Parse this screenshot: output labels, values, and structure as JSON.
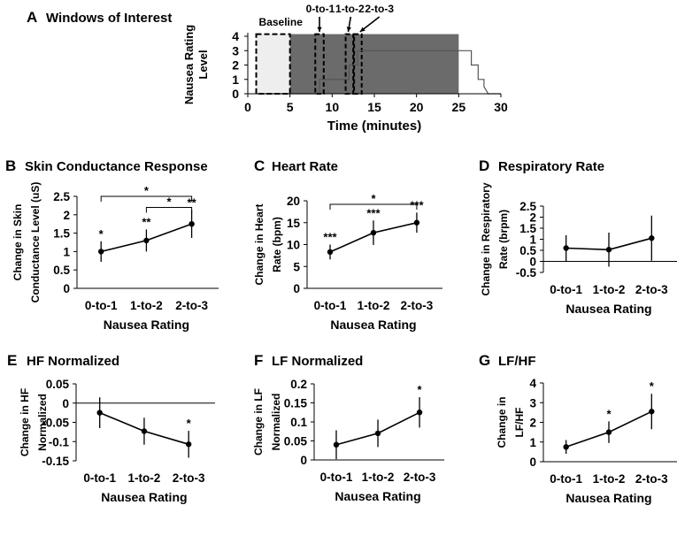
{
  "panelA": {
    "letter": "A",
    "title": "Windows of Interest",
    "ylabel_line1": "Nausea Rating",
    "ylabel_line2": "Level",
    "xlabel": "Time (minutes)",
    "x_ticks": [
      0,
      5,
      10,
      15,
      20,
      25,
      30
    ],
    "y_ticks": [
      0,
      1,
      2,
      3,
      4
    ],
    "xlim": [
      0,
      30
    ],
    "ylim": [
      0,
      4
    ],
    "window_labels": [
      "Baseline",
      "0-to-1",
      "1-to-2",
      "2-to-3"
    ],
    "windows": [
      {
        "name": "Baseline",
        "start": 1,
        "end": 5
      },
      {
        "name": "0-to-1",
        "start": 8,
        "end": 9
      },
      {
        "name": "1-to-2",
        "start": 11.6,
        "end": 12.5
      },
      {
        "name": "2-to-3",
        "start": 12.6,
        "end": 13.5
      }
    ],
    "shade_start": 5,
    "shade_end": 25,
    "rating_trace": {
      "time": [
        1,
        8.5,
        8.5,
        12,
        12,
        13,
        13,
        25,
        25.5,
        26.5,
        26.5,
        27.3,
        27.3,
        28,
        28,
        28.5,
        30
      ],
      "rating": [
        0,
        0,
        1,
        1,
        2,
        2,
        3,
        3,
        3,
        3,
        2,
        2,
        1,
        1,
        0.5,
        0,
        0
      ]
    },
    "colors": {
      "shade": "#6b6b6b",
      "baseline_fill": "#eeeeee"
    }
  },
  "chart_data": [
    {
      "id": "B",
      "type": "line",
      "title": "Skin Conductance Response",
      "ylabel_lines": [
        "Change in Skin",
        "Conductance Level (uS)"
      ],
      "xlabel": "Nausea Rating",
      "categories": [
        "0-to-1",
        "1-to-2",
        "2-to-3"
      ],
      "values": [
        1.0,
        1.3,
        1.75
      ],
      "err": [
        0.28,
        0.3,
        0.38
      ],
      "sig": [
        "*",
        "**",
        "**"
      ],
      "ylim": [
        0,
        2.5
      ],
      "ytick_labels": [
        "0",
        "0.5",
        "1",
        "1.5",
        "2",
        "2.5"
      ],
      "brackets": [
        {
          "from": 0,
          "to": 2,
          "y": 2.5,
          "label": "*"
        },
        {
          "from": 1,
          "to": 2,
          "y": 2.2,
          "label": "*"
        }
      ]
    },
    {
      "id": "C",
      "type": "line",
      "title": "Heart Rate",
      "ylabel_lines": [
        "Change in Heart",
        "Rate (bpm)"
      ],
      "xlabel": "Nausea Rating",
      "categories": [
        "0-to-1",
        "1-to-2",
        "2-to-3"
      ],
      "values": [
        8.3,
        12.7,
        15.0
      ],
      "err": [
        1.7,
        2.8,
        2.3
      ],
      "sig": [
        "***",
        "***",
        "***"
      ],
      "ylim": [
        0,
        20
      ],
      "ytick_labels": [
        "0",
        "5",
        "10",
        "15",
        "20"
      ],
      "brackets": [
        {
          "from": 0,
          "to": 2,
          "y": 19.2,
          "label": "*"
        }
      ]
    },
    {
      "id": "D",
      "type": "line",
      "title": "Respiratory Rate",
      "ylabel_lines": [
        "Change in Respiratory",
        "Rate (brpm)"
      ],
      "xlabel": "Nausea Rating",
      "categories": [
        "0-to-1",
        "1-to-2",
        "2-to-3"
      ],
      "values": [
        0.6,
        0.53,
        1.05
      ],
      "err": [
        0.58,
        0.77,
        1.02
      ],
      "sig": [
        "",
        "",
        ""
      ],
      "ylim": [
        -0.5,
        2.5
      ],
      "ytick_labels": [
        "-0.5",
        "0",
        "0.5",
        "1",
        "1.5",
        "2",
        "2.5"
      ],
      "zero_line": true,
      "brackets": []
    },
    {
      "id": "E",
      "type": "line",
      "title": "HF Normalized",
      "ylabel_lines": [
        "Change in HF",
        "Normalized"
      ],
      "xlabel": "Nausea Rating",
      "categories": [
        "0-to-1",
        "1-to-2",
        "2-to-3"
      ],
      "values": [
        -0.025,
        -0.073,
        -0.107
      ],
      "err": [
        0.04,
        0.035,
        0.035
      ],
      "sig": [
        "",
        "",
        "*"
      ],
      "ylim": [
        -0.15,
        0.05
      ],
      "ytick_labels": [
        "-0.15",
        "-0.1",
        "-0.05",
        "0",
        "0.05"
      ],
      "zero_line": true,
      "brackets": []
    },
    {
      "id": "F",
      "type": "line",
      "title": "LF Normalized",
      "ylabel_lines": [
        "Change in LF",
        "Normalized"
      ],
      "xlabel": "Nausea Rating",
      "categories": [
        "0-to-1",
        "1-to-2",
        "2-to-3"
      ],
      "values": [
        0.04,
        0.07,
        0.125
      ],
      "err": [
        0.038,
        0.036,
        0.04
      ],
      "sig": [
        "",
        "",
        "*"
      ],
      "ylim": [
        0,
        0.2
      ],
      "ytick_labels": [
        "0",
        "0.05",
        "0.1",
        "0.15",
        "0.2"
      ],
      "brackets": []
    },
    {
      "id": "G",
      "type": "line",
      "title": "LF/HF",
      "ylabel_lines": [
        "Change in",
        "LF/HF"
      ],
      "xlabel": "Nausea Rating",
      "categories": [
        "0-to-1",
        "1-to-2",
        "2-to-3"
      ],
      "values": [
        0.75,
        1.5,
        2.55
      ],
      "err": [
        0.35,
        0.55,
        0.9
      ],
      "sig": [
        "",
        "*",
        "*"
      ],
      "ylim": [
        0,
        4
      ],
      "ytick_labels": [
        "0",
        "1",
        "2",
        "3",
        "4"
      ],
      "brackets": []
    }
  ]
}
